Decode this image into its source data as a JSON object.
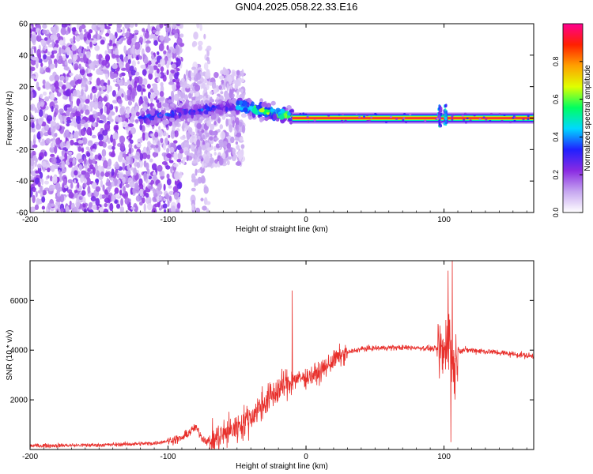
{
  "title": "GN04.2025.058.22.33.E16",
  "colors": {
    "snr_line": "#e8302c",
    "colormap": [
      "#ffffff",
      "#c6a6f0",
      "#8a2be2",
      "#2020ff",
      "#00d8ff",
      "#00ff60",
      "#e0ff00",
      "#ffa000",
      "#ff2000",
      "#ff0090"
    ]
  },
  "chart_data": [
    {
      "type": "heatmap",
      "xlabel": "Height of straight line (km)",
      "ylabel": "Frequency (Hz)",
      "xlim": [
        -200,
        165
      ],
      "ylim": [
        -60,
        60
      ],
      "x_ticks": [
        -200,
        -100,
        0,
        100
      ],
      "x_tick_labels": [
        "-200",
        "-100",
        "0",
        "100"
      ],
      "y_ticks": [
        -60,
        -40,
        -20,
        0,
        20,
        40,
        60
      ],
      "y_tick_labels": [
        "-60",
        "-40",
        "-20",
        "0",
        "20",
        "40",
        "60"
      ],
      "colorbar": {
        "label": "Normalized spectral amplitude",
        "range": [
          0,
          1
        ],
        "ticks": [
          0,
          0.2,
          0.4,
          0.6,
          0.8
        ],
        "tick_labels": [
          "0.0",
          "0.2",
          "0.4",
          "0.6",
          "0.8"
        ]
      },
      "features": [
        {
          "kind": "noise_scatter",
          "x_range": [
            -200,
            -90
          ],
          "f_range": [
            -60,
            60
          ],
          "amplitude": 0.15
        },
        {
          "kind": "noise_scatter",
          "x_range": [
            -82,
            -70
          ],
          "f_range": [
            -60,
            60
          ],
          "amplitude": 0.08
        },
        {
          "kind": "noise_scatter",
          "x_range": [
            -90,
            -45
          ],
          "f_range": [
            -30,
            30
          ],
          "amplitude": 0.1
        },
        {
          "kind": "ridge",
          "x_range": [
            -120,
            -50
          ],
          "f_center_range": [
            0,
            8
          ],
          "amplitude": 0.35
        },
        {
          "kind": "ridge",
          "x_range": [
            -50,
            -10
          ],
          "f_center_range": [
            8,
            1
          ],
          "amplitude": 0.6
        },
        {
          "kind": "carrier",
          "x_range": [
            -10,
            165
          ],
          "f_center": 0,
          "amplitude": 0.95
        },
        {
          "kind": "spike",
          "x": 97,
          "f_range": [
            -5,
            8
          ],
          "amplitude": 0.4
        },
        {
          "kind": "spike",
          "x": 101,
          "f_range": [
            -5,
            8
          ],
          "amplitude": 0.4
        }
      ]
    },
    {
      "type": "line",
      "xlabel": "Height of straight line (km)",
      "ylabel": "SNR (10 * v/v)",
      "xlim": [
        -200,
        165
      ],
      "ylim": [
        0,
        7600
      ],
      "x_ticks": [
        -200,
        -100,
        0,
        100
      ],
      "x_tick_labels": [
        "-200",
        "-100",
        "0",
        "100"
      ],
      "y_ticks": [
        2000,
        4000,
        6000
      ],
      "y_tick_labels": [
        "2000",
        "4000",
        "6000"
      ],
      "series": [
        {
          "x": [
            -200,
            -150,
            -110,
            -90,
            -80,
            -75,
            -70,
            -60,
            -50,
            -40,
            -30,
            -20,
            -10,
            0,
            10,
            20,
            30,
            40,
            60,
            80,
            95,
            100,
            103,
            105,
            107,
            110,
            120,
            140,
            165
          ],
          "y": [
            150,
            180,
            250,
            450,
            900,
            450,
            300,
            600,
            900,
            1300,
            1900,
            2400,
            2800,
            2900,
            3100,
            3600,
            3900,
            4050,
            4100,
            4100,
            4050,
            3800,
            4800,
            4000,
            3200,
            4000,
            4000,
            3900,
            3750
          ],
          "spikes": [
            {
              "x": -10,
              "y": 6400
            },
            {
              "x": 103,
              "y": 7200
            },
            {
              "x": 105,
              "y": 300
            },
            {
              "x": 106,
              "y": 7600
            }
          ]
        }
      ]
    }
  ]
}
